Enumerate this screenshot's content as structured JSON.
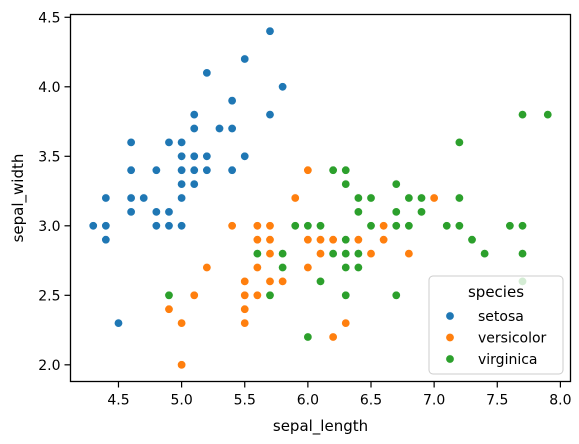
{
  "chart_data": {
    "type": "scatter",
    "xlabel": "sepal_length",
    "ylabel": "sepal_width",
    "xlim": [
      4.12,
      8.08
    ],
    "ylim": [
      1.88,
      4.52
    ],
    "xticks": [
      4.5,
      5.0,
      5.5,
      6.0,
      6.5,
      7.0,
      7.5,
      8.0
    ],
    "xtick_labels": [
      "4.5",
      "5.0",
      "5.5",
      "6.0",
      "6.5",
      "7.0",
      "7.5",
      "8.0"
    ],
    "yticks": [
      2.0,
      2.5,
      3.0,
      3.5,
      4.0,
      4.5
    ],
    "ytick_labels": [
      "2.0",
      "2.5",
      "3.0",
      "3.5",
      "4.0",
      "4.5"
    ],
    "grid": false,
    "legend": {
      "title": "species",
      "placement": "lower-right"
    },
    "series": [
      {
        "name": "setosa",
        "color": "#1f77b4",
        "points": [
          [
            5.1,
            3.5
          ],
          [
            4.9,
            3.0
          ],
          [
            4.7,
            3.2
          ],
          [
            4.6,
            3.1
          ],
          [
            5.0,
            3.6
          ],
          [
            5.4,
            3.9
          ],
          [
            4.6,
            3.4
          ],
          [
            5.0,
            3.4
          ],
          [
            4.4,
            2.9
          ],
          [
            4.9,
            3.1
          ],
          [
            5.4,
            3.7
          ],
          [
            4.8,
            3.4
          ],
          [
            4.8,
            3.0
          ],
          [
            4.3,
            3.0
          ],
          [
            5.8,
            4.0
          ],
          [
            5.7,
            4.4
          ],
          [
            5.4,
            3.9
          ],
          [
            5.1,
            3.5
          ],
          [
            5.7,
            3.8
          ],
          [
            5.1,
            3.8
          ],
          [
            5.4,
            3.4
          ],
          [
            5.1,
            3.7
          ],
          [
            4.6,
            3.6
          ],
          [
            5.1,
            3.3
          ],
          [
            4.8,
            3.4
          ],
          [
            5.0,
            3.0
          ],
          [
            5.0,
            3.4
          ],
          [
            5.2,
            3.5
          ],
          [
            5.2,
            3.4
          ],
          [
            4.7,
            3.2
          ],
          [
            4.8,
            3.1
          ],
          [
            5.4,
            3.4
          ],
          [
            5.2,
            4.1
          ],
          [
            5.5,
            4.2
          ],
          [
            4.9,
            3.1
          ],
          [
            5.0,
            3.2
          ],
          [
            5.5,
            3.5
          ],
          [
            4.9,
            3.6
          ],
          [
            4.4,
            3.0
          ],
          [
            5.1,
            3.4
          ],
          [
            5.0,
            3.5
          ],
          [
            4.5,
            2.3
          ],
          [
            4.4,
            3.2
          ],
          [
            5.0,
            3.5
          ],
          [
            5.1,
            3.8
          ],
          [
            4.8,
            3.0
          ],
          [
            5.1,
            3.8
          ],
          [
            4.6,
            3.2
          ],
          [
            5.3,
            3.7
          ],
          [
            5.0,
            3.3
          ]
        ]
      },
      {
        "name": "versicolor",
        "color": "#ff7f0e",
        "points": [
          [
            7.0,
            3.2
          ],
          [
            6.4,
            3.2
          ],
          [
            6.9,
            3.1
          ],
          [
            5.5,
            2.3
          ],
          [
            6.5,
            2.8
          ],
          [
            5.7,
            2.8
          ],
          [
            6.3,
            3.3
          ],
          [
            4.9,
            2.4
          ],
          [
            6.6,
            2.9
          ],
          [
            5.2,
            2.7
          ],
          [
            5.0,
            2.0
          ],
          [
            5.9,
            3.0
          ],
          [
            6.0,
            2.2
          ],
          [
            6.1,
            2.9
          ],
          [
            5.6,
            2.9
          ],
          [
            6.7,
            3.1
          ],
          [
            5.6,
            3.0
          ],
          [
            5.8,
            2.7
          ],
          [
            6.2,
            2.2
          ],
          [
            5.6,
            2.5
          ],
          [
            5.9,
            3.2
          ],
          [
            6.1,
            2.8
          ],
          [
            6.3,
            2.5
          ],
          [
            6.1,
            2.8
          ],
          [
            6.4,
            2.9
          ],
          [
            6.6,
            3.0
          ],
          [
            6.8,
            2.8
          ],
          [
            6.7,
            3.0
          ],
          [
            6.0,
            2.9
          ],
          [
            5.7,
            2.6
          ],
          [
            5.5,
            2.4
          ],
          [
            5.5,
            2.4
          ],
          [
            5.8,
            2.7
          ],
          [
            6.0,
            2.7
          ],
          [
            5.4,
            3.0
          ],
          [
            6.0,
            3.4
          ],
          [
            6.7,
            3.1
          ],
          [
            6.3,
            2.3
          ],
          [
            5.6,
            3.0
          ],
          [
            5.5,
            2.5
          ],
          [
            5.5,
            2.6
          ],
          [
            6.1,
            3.0
          ],
          [
            5.8,
            2.6
          ],
          [
            5.0,
            2.3
          ],
          [
            5.6,
            2.7
          ],
          [
            5.7,
            3.0
          ],
          [
            5.7,
            2.9
          ],
          [
            6.2,
            2.9
          ],
          [
            5.1,
            2.5
          ],
          [
            5.7,
            2.8
          ]
        ]
      },
      {
        "name": "virginica",
        "color": "#2ca02c",
        "points": [
          [
            6.3,
            3.3
          ],
          [
            5.8,
            2.7
          ],
          [
            7.1,
            3.0
          ],
          [
            6.3,
            2.9
          ],
          [
            6.5,
            3.0
          ],
          [
            7.6,
            3.0
          ],
          [
            4.9,
            2.5
          ],
          [
            7.3,
            2.9
          ],
          [
            6.7,
            2.5
          ],
          [
            7.2,
            3.6
          ],
          [
            6.5,
            3.2
          ],
          [
            6.4,
            2.7
          ],
          [
            6.8,
            3.0
          ],
          [
            5.7,
            2.5
          ],
          [
            5.8,
            2.8
          ],
          [
            6.4,
            3.2
          ],
          [
            6.5,
            3.0
          ],
          [
            7.7,
            3.8
          ],
          [
            7.7,
            2.6
          ],
          [
            6.0,
            2.2
          ],
          [
            6.9,
            3.2
          ],
          [
            5.6,
            2.8
          ],
          [
            7.7,
            2.8
          ],
          [
            6.3,
            2.7
          ],
          [
            6.7,
            3.3
          ],
          [
            7.2,
            3.2
          ],
          [
            6.2,
            2.8
          ],
          [
            6.1,
            3.0
          ],
          [
            6.4,
            2.8
          ],
          [
            7.2,
            3.0
          ],
          [
            7.4,
            2.8
          ],
          [
            7.9,
            3.8
          ],
          [
            6.4,
            2.8
          ],
          [
            6.3,
            2.8
          ],
          [
            6.1,
            2.6
          ],
          [
            7.7,
            3.0
          ],
          [
            6.3,
            3.4
          ],
          [
            6.4,
            3.1
          ],
          [
            6.0,
            3.0
          ],
          [
            6.9,
            3.1
          ],
          [
            6.7,
            3.1
          ],
          [
            6.9,
            3.1
          ],
          [
            5.8,
            2.7
          ],
          [
            6.8,
            3.2
          ],
          [
            6.7,
            3.3
          ],
          [
            6.7,
            3.0
          ],
          [
            6.3,
            2.5
          ],
          [
            6.5,
            3.0
          ],
          [
            6.2,
            3.4
          ],
          [
            5.9,
            3.0
          ]
        ]
      }
    ]
  }
}
